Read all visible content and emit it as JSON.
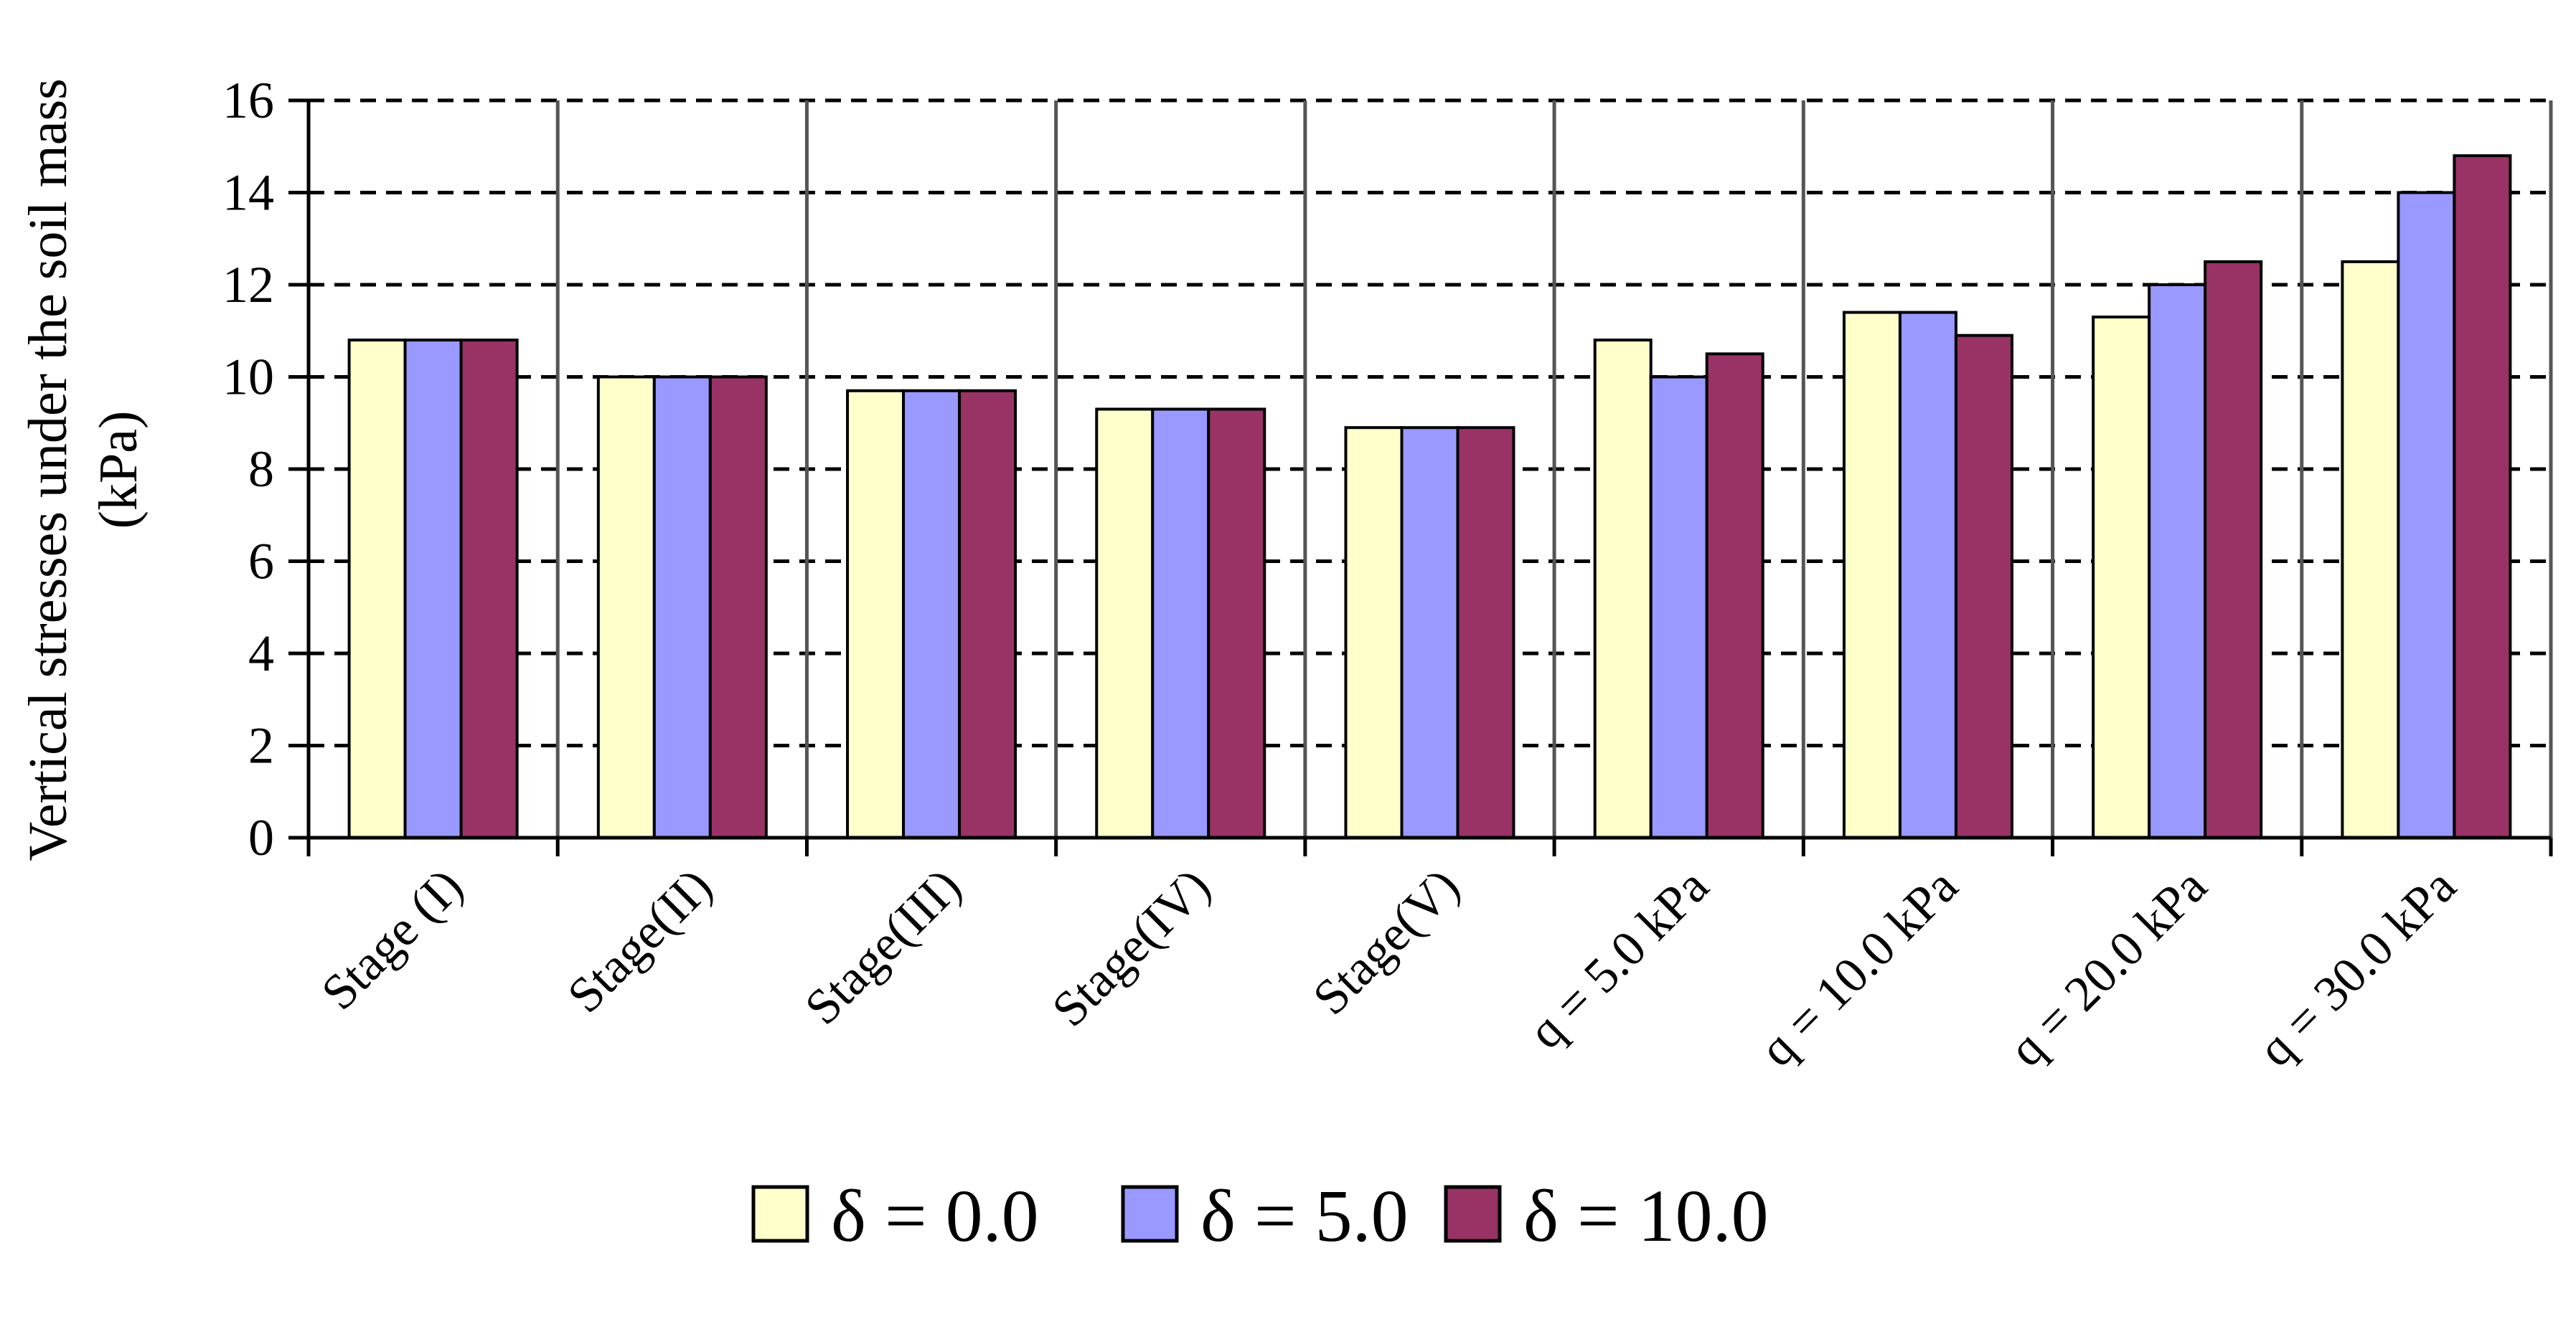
{
  "chart_data": {
    "type": "bar",
    "categories": [
      "Stage (I)",
      "Stage(II)",
      "Stage(III)",
      "Stage(IV)",
      "Stage(V)",
      "q = 5.0 kPa",
      "q = 10.0 kPa",
      "q = 20.0 kPa",
      "q = 30.0 kPa"
    ],
    "series": [
      {
        "name": "δ = 0.0",
        "color": "#FFFFCC",
        "values": [
          10.8,
          10.0,
          9.7,
          9.3,
          8.9,
          10.8,
          11.4,
          11.3,
          12.5
        ]
      },
      {
        "name": "δ = 5.0",
        "color": "#9999FF",
        "values": [
          10.8,
          10.0,
          9.7,
          9.3,
          8.9,
          10.0,
          11.4,
          12.0,
          14.0
        ]
      },
      {
        "name": "δ = 10.0",
        "color": "#993366",
        "values": [
          10.8,
          10.0,
          9.7,
          9.3,
          8.9,
          10.5,
          10.9,
          12.5,
          14.8
        ]
      }
    ],
    "title": "",
    "xlabel": "",
    "ylabel": "Vertical stresses under the soil mass (kPa)",
    "ylabel_lines": [
      "Vertical stresses under the soil mass",
      "(kPa)"
    ],
    "ylim": [
      0,
      16
    ],
    "yticks": [
      0,
      2,
      4,
      6,
      8,
      10,
      12,
      14,
      16
    ],
    "grid": "horizontal dashed",
    "legend_position": "bottom"
  }
}
